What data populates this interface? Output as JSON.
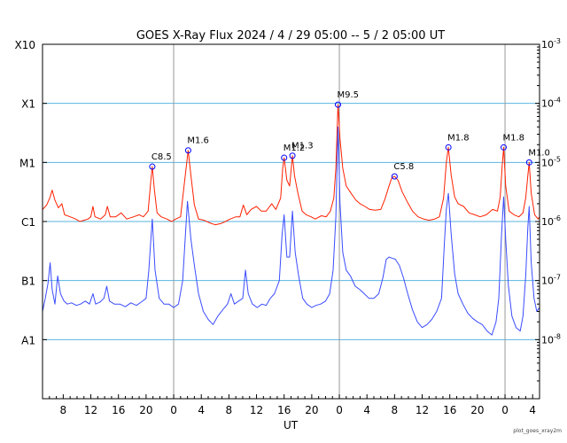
{
  "chart_data": {
    "type": "line",
    "title": "GOES X-Ray Flux   2024 /  4 / 29   05:00 --  5 /  2   05:00   UT",
    "xlabel": "UT",
    "footer": "plot_goes_xray2m",
    "y_scale": "log",
    "ylim": [
      1e-09,
      0.001
    ],
    "grid": true,
    "x_hour_range": [
      5,
      77
    ],
    "day_boundaries_hours": [
      24,
      48,
      72
    ],
    "x_ticks": [
      {
        "hour": 8,
        "label": "8"
      },
      {
        "hour": 12,
        "label": "12"
      },
      {
        "hour": 16,
        "label": "16"
      },
      {
        "hour": 20,
        "label": "20"
      },
      {
        "hour": 24,
        "label": "0"
      },
      {
        "hour": 28,
        "label": "4"
      },
      {
        "hour": 32,
        "label": "8"
      },
      {
        "hour": 36,
        "label": "12"
      },
      {
        "hour": 40,
        "label": "16"
      },
      {
        "hour": 44,
        "label": "20"
      },
      {
        "hour": 48,
        "label": "0"
      },
      {
        "hour": 52,
        "label": "4"
      },
      {
        "hour": 56,
        "label": "8"
      },
      {
        "hour": 60,
        "label": "12"
      },
      {
        "hour": 64,
        "label": "16"
      },
      {
        "hour": 68,
        "label": "20"
      },
      {
        "hour": 72,
        "label": "0"
      },
      {
        "hour": 76,
        "label": "4"
      }
    ],
    "y_left_ticks": [
      {
        "value": 0.001,
        "label": "X10"
      },
      {
        "value": 0.0001,
        "label": "X1"
      },
      {
        "value": 1e-05,
        "label": "M1"
      },
      {
        "value": 1e-06,
        "label": "C1"
      },
      {
        "value": 1e-07,
        "label": "B1"
      },
      {
        "value": 1e-08,
        "label": "A1"
      }
    ],
    "y_right_ticks": [
      {
        "value": 0.001,
        "mant": "10",
        "exp": "-3"
      },
      {
        "value": 0.0001,
        "mant": "10",
        "exp": "-4"
      },
      {
        "value": 1e-05,
        "mant": "10",
        "exp": "-5"
      },
      {
        "value": 1e-06,
        "mant": "10",
        "exp": "-6"
      },
      {
        "value": 1e-07,
        "mant": "10",
        "exp": "-7"
      },
      {
        "value": 1e-08,
        "mant": "10",
        "exp": "-8"
      }
    ],
    "gridlines": [
      0.0001,
      1e-05,
      1e-06,
      1e-07,
      1e-08
    ],
    "flares": [
      {
        "hour": 20.9,
        "flux": 8.5e-06,
        "label": "C8.5"
      },
      {
        "hour": 26.1,
        "flux": 1.6e-05,
        "label": "M1.6"
      },
      {
        "hour": 40.0,
        "flux": 1.2e-05,
        "label": "M1.2"
      },
      {
        "hour": 41.2,
        "flux": 1.3e-05,
        "label": "M1.3"
      },
      {
        "hour": 47.8,
        "flux": 9.5e-05,
        "label": "M9.5"
      },
      {
        "hour": 56.0,
        "flux": 5.8e-06,
        "label": "C5.8"
      },
      {
        "hour": 63.8,
        "flux": 1.8e-05,
        "label": "M1.8"
      },
      {
        "hour": 71.8,
        "flux": 1.8e-05,
        "label": "M1.8"
      },
      {
        "hour": 75.5,
        "flux": 1e-05,
        "label": "M1.0"
      }
    ],
    "series": [
      {
        "color": "#ff2000",
        "points": [
          [
            5.0,
            1.6e-06
          ],
          [
            5.6,
            1.9e-06
          ],
          [
            6.1,
            2.6e-06
          ],
          [
            6.4,
            3.4e-06
          ],
          [
            6.8,
            2.3e-06
          ],
          [
            7.3,
            1.7e-06
          ],
          [
            7.8,
            2e-06
          ],
          [
            8.2,
            1.3e-06
          ],
          [
            9.0,
            1.2e-06
          ],
          [
            9.8,
            1.1e-06
          ],
          [
            10.4,
            1e-06
          ],
          [
            11.0,
            1.05e-06
          ],
          [
            11.6,
            1.1e-06
          ],
          [
            12.0,
            1.2e-06
          ],
          [
            12.3,
            1.8e-06
          ],
          [
            12.6,
            1.2e-06
          ],
          [
            13.4,
            1.1e-06
          ],
          [
            14.1,
            1.3e-06
          ],
          [
            14.4,
            1.8e-06
          ],
          [
            14.8,
            1.2e-06
          ],
          [
            15.6,
            1.2e-06
          ],
          [
            16.4,
            1.4e-06
          ],
          [
            17.2,
            1.1e-06
          ],
          [
            18.2,
            1.2e-06
          ],
          [
            19.0,
            1.3e-06
          ],
          [
            19.6,
            1.2e-06
          ],
          [
            20.3,
            1.5e-06
          ],
          [
            20.7,
            5e-06
          ],
          [
            20.9,
            8.5e-06
          ],
          [
            21.2,
            3.5e-06
          ],
          [
            21.6,
            1.4e-06
          ],
          [
            22.2,
            1.2e-06
          ],
          [
            23.0,
            1.1e-06
          ],
          [
            23.7,
            1e-06
          ],
          [
            24.3,
            1.1e-06
          ],
          [
            25.0,
            1.2e-06
          ],
          [
            25.6,
            5e-06
          ],
          [
            26.1,
            1.6e-05
          ],
          [
            26.5,
            6e-06
          ],
          [
            27.0,
            1.9e-06
          ],
          [
            27.6,
            1.1e-06
          ],
          [
            28.4,
            1.05e-06
          ],
          [
            29.2,
            9.5e-07
          ],
          [
            30.0,
            8.8e-07
          ],
          [
            30.8,
            9.2e-07
          ],
          [
            31.5,
            1e-06
          ],
          [
            32.2,
            1.1e-06
          ],
          [
            33.0,
            1.2e-06
          ],
          [
            33.6,
            1.2e-06
          ],
          [
            34.1,
            1.9e-06
          ],
          [
            34.6,
            1.3e-06
          ],
          [
            35.2,
            1.6e-06
          ],
          [
            36.0,
            1.8e-06
          ],
          [
            36.7,
            1.5e-06
          ],
          [
            37.4,
            1.5e-06
          ],
          [
            38.2,
            2e-06
          ],
          [
            38.8,
            1.6e-06
          ],
          [
            39.5,
            2.5e-06
          ],
          [
            39.8,
            8e-06
          ],
          [
            40.0,
            1.2e-05
          ],
          [
            40.4,
            5e-06
          ],
          [
            40.8,
            4e-06
          ],
          [
            41.2,
            1.3e-05
          ],
          [
            41.5,
            6e-06
          ],
          [
            42.0,
            3e-06
          ],
          [
            42.6,
            1.5e-06
          ],
          [
            43.2,
            1.3e-06
          ],
          [
            43.9,
            1.2e-06
          ],
          [
            44.5,
            1.1e-06
          ],
          [
            45.4,
            1.25e-06
          ],
          [
            46.1,
            1.2e-06
          ],
          [
            46.7,
            1.5e-06
          ],
          [
            47.2,
            2.5e-06
          ],
          [
            47.5,
            8e-06
          ],
          [
            47.8,
            9.5e-05
          ],
          [
            48.1,
            2.5e-05
          ],
          [
            48.5,
            8e-06
          ],
          [
            49.0,
            4e-06
          ],
          [
            49.7,
            3e-06
          ],
          [
            50.4,
            2.3e-06
          ],
          [
            51.0,
            2e-06
          ],
          [
            51.7,
            1.8e-06
          ],
          [
            52.4,
            1.6e-06
          ],
          [
            53.2,
            1.55e-06
          ],
          [
            54.0,
            1.6e-06
          ],
          [
            54.6,
            2.4e-06
          ],
          [
            55.2,
            4e-06
          ],
          [
            55.6,
            5.5e-06
          ],
          [
            56.0,
            5.8e-06
          ],
          [
            56.5,
            5e-06
          ],
          [
            57.1,
            3.2e-06
          ],
          [
            57.8,
            2.2e-06
          ],
          [
            58.6,
            1.5e-06
          ],
          [
            59.4,
            1.2e-06
          ],
          [
            60.2,
            1.1e-06
          ],
          [
            61.0,
            1.05e-06
          ],
          [
            61.8,
            1.1e-06
          ],
          [
            62.5,
            1.2e-06
          ],
          [
            63.1,
            2.5e-06
          ],
          [
            63.5,
            1e-05
          ],
          [
            63.8,
            1.8e-05
          ],
          [
            64.2,
            6e-06
          ],
          [
            64.7,
            2.6e-06
          ],
          [
            65.2,
            2e-06
          ],
          [
            66.0,
            1.8e-06
          ],
          [
            66.8,
            1.4e-06
          ],
          [
            67.6,
            1.3e-06
          ],
          [
            68.4,
            1.2e-06
          ],
          [
            69.3,
            1.3e-06
          ],
          [
            70.2,
            1.6e-06
          ],
          [
            70.9,
            1.5e-06
          ],
          [
            71.3,
            2.6e-06
          ],
          [
            71.6,
            9e-06
          ],
          [
            71.8,
            1.8e-05
          ],
          [
            72.1,
            4e-06
          ],
          [
            72.6,
            1.5e-06
          ],
          [
            73.3,
            1.3e-06
          ],
          [
            74.0,
            1.2e-06
          ],
          [
            74.6,
            1.4e-06
          ],
          [
            75.0,
            2.5e-06
          ],
          [
            75.3,
            6e-06
          ],
          [
            75.5,
            1e-05
          ],
          [
            75.8,
            3e-06
          ],
          [
            76.3,
            1.3e-06
          ],
          [
            76.8,
            1.1e-06
          ],
          [
            77.0,
            1.2e-06
          ]
        ]
      },
      {
        "color": "#3a4cff",
        "points": [
          [
            5.0,
            3e-08
          ],
          [
            5.4,
            5e-08
          ],
          [
            5.8,
            9e-08
          ],
          [
            6.1,
            2e-07
          ],
          [
            6.4,
            7e-08
          ],
          [
            6.8,
            4e-08
          ],
          [
            7.2,
            1.2e-07
          ],
          [
            7.6,
            6e-08
          ],
          [
            8.1,
            4.5e-08
          ],
          [
            8.6,
            4e-08
          ],
          [
            9.2,
            4.2e-08
          ],
          [
            9.9,
            3.8e-08
          ],
          [
            10.5,
            4e-08
          ],
          [
            11.2,
            4.5e-08
          ],
          [
            11.8,
            4e-08
          ],
          [
            12.3,
            6e-08
          ],
          [
            12.7,
            4e-08
          ],
          [
            13.3,
            4.3e-08
          ],
          [
            13.9,
            5e-08
          ],
          [
            14.3,
            8e-08
          ],
          [
            14.7,
            4.5e-08
          ],
          [
            15.4,
            4e-08
          ],
          [
            16.2,
            4e-08
          ],
          [
            17.0,
            3.6e-08
          ],
          [
            17.8,
            4.2e-08
          ],
          [
            18.6,
            3.8e-08
          ],
          [
            19.4,
            4.4e-08
          ],
          [
            20.0,
            5e-08
          ],
          [
            20.4,
            1.5e-07
          ],
          [
            20.7,
            5e-07
          ],
          [
            20.9,
            1.1e-06
          ],
          [
            21.3,
            1.5e-07
          ],
          [
            21.9,
            5e-08
          ],
          [
            22.6,
            4e-08
          ],
          [
            23.3,
            4e-08
          ],
          [
            24.0,
            3.5e-08
          ],
          [
            24.7,
            4e-08
          ],
          [
            25.3,
            1e-07
          ],
          [
            25.7,
            6e-07
          ],
          [
            26.0,
            2.2e-06
          ],
          [
            26.5,
            5e-07
          ],
          [
            27.0,
            1.8e-07
          ],
          [
            27.6,
            6e-08
          ],
          [
            28.3,
            3e-08
          ],
          [
            29.0,
            2.2e-08
          ],
          [
            29.7,
            1.8e-08
          ],
          [
            30.4,
            2.5e-08
          ],
          [
            31.1,
            3.2e-08
          ],
          [
            31.8,
            4e-08
          ],
          [
            32.3,
            6e-08
          ],
          [
            32.8,
            4e-08
          ],
          [
            33.4,
            4.5e-08
          ],
          [
            34.0,
            5e-08
          ],
          [
            34.4,
            1.5e-07
          ],
          [
            34.8,
            6e-08
          ],
          [
            35.4,
            4e-08
          ],
          [
            36.1,
            3.5e-08
          ],
          [
            36.8,
            4e-08
          ],
          [
            37.4,
            3.8e-08
          ],
          [
            38.0,
            5e-08
          ],
          [
            38.6,
            6e-08
          ],
          [
            39.3,
            1e-07
          ],
          [
            39.7,
            6e-07
          ],
          [
            40.0,
            1.3e-06
          ],
          [
            40.4,
            2.5e-07
          ],
          [
            40.8,
            2.5e-07
          ],
          [
            41.2,
            1.5e-06
          ],
          [
            41.6,
            3e-07
          ],
          [
            42.1,
            1.2e-07
          ],
          [
            42.7,
            5e-08
          ],
          [
            43.3,
            4e-08
          ],
          [
            44.0,
            3.5e-08
          ],
          [
            44.6,
            3.8e-08
          ],
          [
            45.3,
            4e-08
          ],
          [
            46.0,
            4.5e-08
          ],
          [
            46.6,
            6e-08
          ],
          [
            47.1,
            1.5e-07
          ],
          [
            47.5,
            1.2e-06
          ],
          [
            47.8,
            4e-05
          ],
          [
            48.1,
            2e-06
          ],
          [
            48.5,
            3e-07
          ],
          [
            49.0,
            1.5e-07
          ],
          [
            49.6,
            1.2e-07
          ],
          [
            50.3,
            8e-08
          ],
          [
            51.0,
            7e-08
          ],
          [
            51.6,
            6e-08
          ],
          [
            52.3,
            5e-08
          ],
          [
            53.0,
            5e-08
          ],
          [
            53.7,
            6e-08
          ],
          [
            54.3,
            1.1e-07
          ],
          [
            54.8,
            2.3e-07
          ],
          [
            55.2,
            2.5e-07
          ],
          [
            55.6,
            2.4e-07
          ],
          [
            56.1,
            2.3e-07
          ],
          [
            56.7,
            1.8e-07
          ],
          [
            57.3,
            1.1e-07
          ],
          [
            57.9,
            6e-08
          ],
          [
            58.6,
            3.2e-08
          ],
          [
            59.3,
            2e-08
          ],
          [
            60.0,
            1.6e-08
          ],
          [
            60.7,
            1.8e-08
          ],
          [
            61.4,
            2.2e-08
          ],
          [
            62.1,
            3e-08
          ],
          [
            62.8,
            5e-08
          ],
          [
            63.2,
            4e-07
          ],
          [
            63.5,
            1.6e-06
          ],
          [
            63.8,
            3e-06
          ],
          [
            64.2,
            6e-07
          ],
          [
            64.7,
            1.3e-07
          ],
          [
            65.2,
            6e-08
          ],
          [
            65.9,
            4e-08
          ],
          [
            66.6,
            2.8e-08
          ],
          [
            67.3,
            2.3e-08
          ],
          [
            68.0,
            2e-08
          ],
          [
            68.7,
            1.8e-08
          ],
          [
            69.4,
            1.4e-08
          ],
          [
            70.1,
            1.2e-08
          ],
          [
            70.7,
            2e-08
          ],
          [
            71.1,
            5e-08
          ],
          [
            71.5,
            6e-07
          ],
          [
            71.8,
            2.6e-06
          ],
          [
            72.1,
            5e-07
          ],
          [
            72.5,
            8e-08
          ],
          [
            73.0,
            2.5e-08
          ],
          [
            73.6,
            1.6e-08
          ],
          [
            74.2,
            1.4e-08
          ],
          [
            74.6,
            2.5e-08
          ],
          [
            75.0,
            1.2e-07
          ],
          [
            75.3,
            8e-07
          ],
          [
            75.5,
            1.8e-06
          ],
          [
            75.8,
            2e-07
          ],
          [
            76.2,
            5e-08
          ],
          [
            76.6,
            3e-08
          ],
          [
            77.0,
            3.5e-08
          ]
        ]
      }
    ]
  }
}
